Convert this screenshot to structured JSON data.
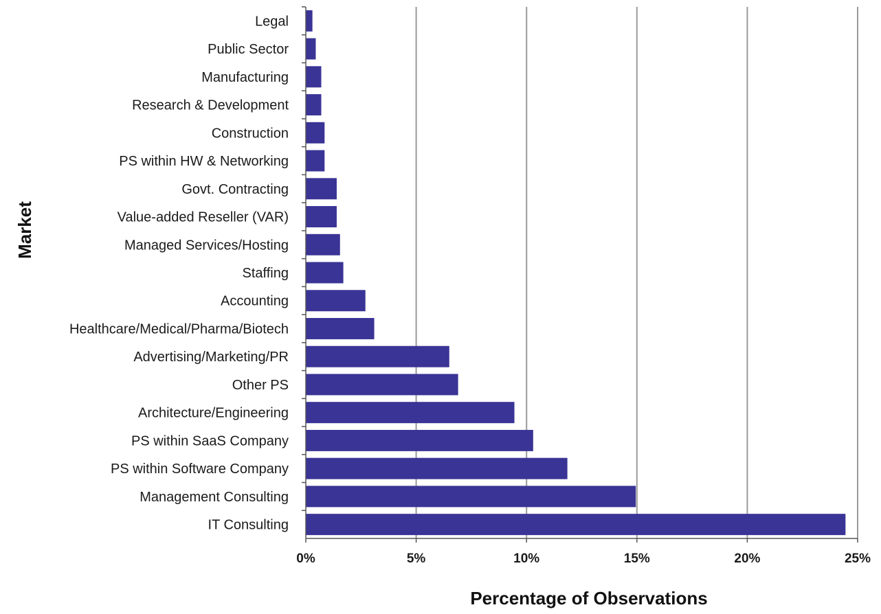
{
  "chart_data": {
    "type": "bar",
    "orientation": "horizontal",
    "xlabel": "Percentage of Observations",
    "ylabel": "Market",
    "xlim": [
      0,
      25
    ],
    "x_unit": "%",
    "x_ticks": [
      "0%",
      "5%",
      "10%",
      "15%",
      "20%",
      "25%"
    ],
    "grid": "vertical",
    "bar_color": "#3a3496",
    "grid_color": "#9a9a9a",
    "categories": [
      "Legal",
      "Public Sector",
      "Manufacturing",
      "Research & Development",
      "Construction",
      "PS within HW & Networking",
      "Govt. Contracting",
      "Value-added Reseller (VAR)",
      "Managed Services/Hosting",
      "Staffing",
      "Accounting",
      "Healthcare/Medical/Pharma/Biotech",
      "Advertising/Marketing/PR",
      "Other PS",
      "Architecture/Engineering",
      "PS within SaaS Company",
      "PS within Software Company",
      "Management Consulting",
      "IT Consulting"
    ],
    "values": [
      0.3,
      0.45,
      0.7,
      0.7,
      0.85,
      0.85,
      1.4,
      1.4,
      1.55,
      1.7,
      2.7,
      3.1,
      6.5,
      6.9,
      9.45,
      10.3,
      11.85,
      14.95,
      24.45
    ]
  }
}
